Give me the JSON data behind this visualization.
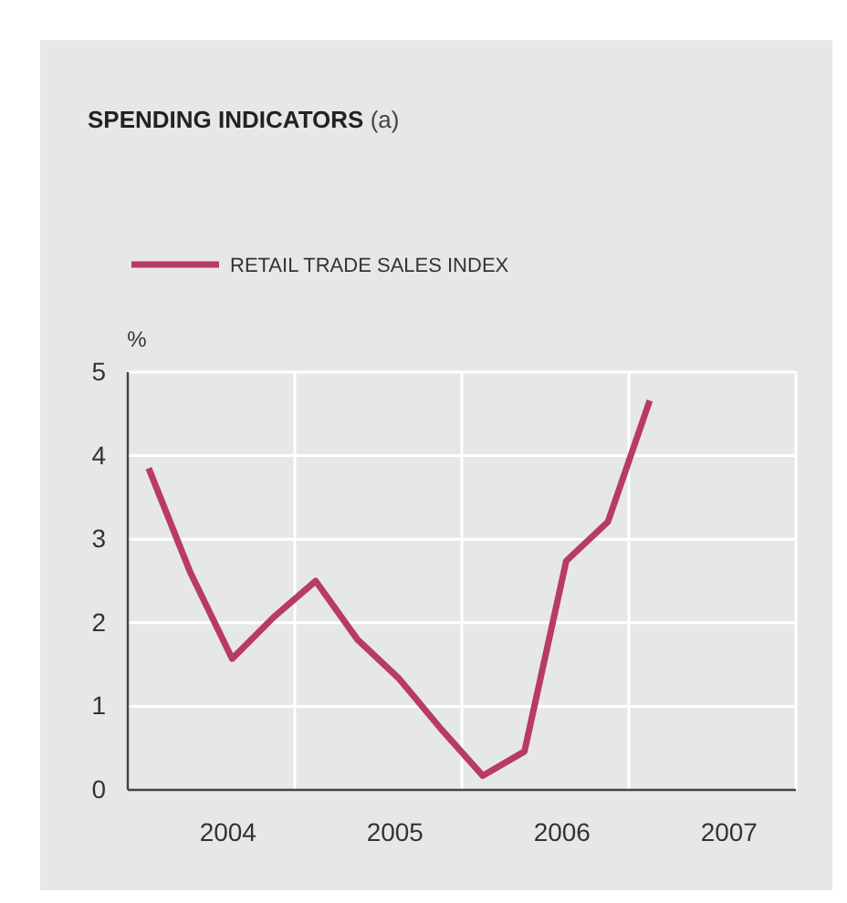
{
  "chart_data": {
    "type": "line",
    "title": "SPENDING INDICATORS (a)",
    "ylabel": "%",
    "x": [
      2003.625,
      2003.875,
      2004.125,
      2004.375,
      2004.625,
      2004.875,
      2005.125,
      2005.375,
      2005.625,
      2005.875,
      2006.125,
      2006.375,
      2006.625
    ],
    "series": [
      {
        "name": "RETAIL TRADE SALES INDEX",
        "color": "#b83a67",
        "values": [
          3.85,
          2.6,
          1.57,
          2.07,
          2.5,
          1.8,
          1.33,
          0.73,
          0.17,
          0.46,
          2.74,
          3.21,
          4.66
        ]
      }
    ],
    "xlim": [
      2003.5,
      2007.5
    ],
    "xticks": [
      {
        "value": 2004.1,
        "label": "2004"
      },
      {
        "value": 2004.5,
        "label": null
      },
      {
        "value": 2005.1,
        "label": "2005"
      },
      {
        "value": 2005.5,
        "label": null
      },
      {
        "value": 2006.1,
        "label": "2006"
      },
      {
        "value": 2006.5,
        "label": null
      },
      {
        "value": 2007.1,
        "label": "2007"
      }
    ],
    "ylim": [
      0,
      5
    ],
    "yticks": [
      0,
      1,
      2,
      3,
      4,
      5
    ],
    "grid": true,
    "legend": "top left",
    "line_style": "solid",
    "marker": "none"
  }
}
